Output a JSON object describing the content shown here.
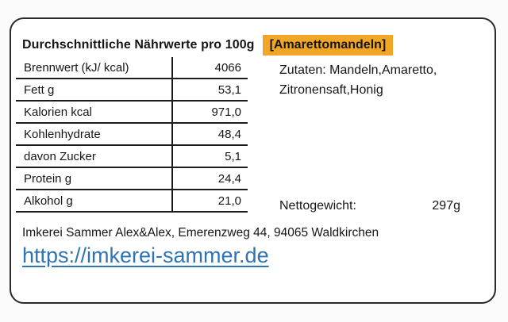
{
  "label": {
    "title": "Durchschnittliche Nährwerte pro 100g",
    "product_tag": "[Amarettomandeln]",
    "highlight_color": "#F2A626"
  },
  "nutrition_table": {
    "rows": [
      {
        "label": "Brennwert (kJ/ kcal)",
        "value": "4066"
      },
      {
        "label": "Fett g",
        "value": "53,1"
      },
      {
        "label": "Kalorien kcal",
        "value": "971,0"
      },
      {
        "label": "Kohlenhydrate",
        "value": "48,4"
      },
      {
        "label": "davon Zucker",
        "value": "5,1"
      },
      {
        "label": "Protein g",
        "value": "24,4"
      },
      {
        "label": "Alkohol g",
        "value": "21,0"
      }
    ]
  },
  "ingredients": {
    "text": "Zutaten: Mandeln,Amaretto,\nZitronensaft,Honig"
  },
  "net_weight": {
    "label": "Nettogewicht:",
    "value": "297g"
  },
  "footer": {
    "address": "Imkerei Sammer Alex&Alex, Emerenzweg 44, 94065 Waldkirchen",
    "website": "https://imkerei-sammer.de",
    "link_color": "#2E74B5"
  }
}
